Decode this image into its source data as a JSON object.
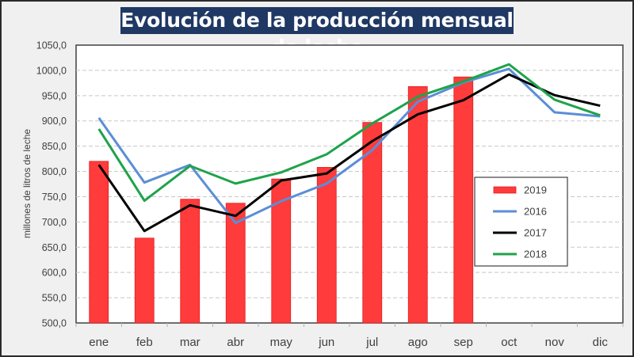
{
  "chart_data": {
    "type": "bar+line",
    "title": "Evolución de la producción mensual de leche",
    "xlabel": "",
    "ylabel": "millones de litros de leche",
    "ylim": [
      500,
      1050
    ],
    "ytick_step": 50,
    "ytick_labels": [
      "500,0",
      "550,0",
      "600,0",
      "650,0",
      "700,0",
      "750,0",
      "800,0",
      "850,0",
      "900,0",
      "950,0",
      "1000,0",
      "1050,0"
    ],
    "grid": "horizontal dashed",
    "legend_position": "right-middle",
    "categories": [
      "ene",
      "feb",
      "mar",
      "abr",
      "may",
      "jun",
      "jul",
      "ago",
      "sep",
      "oct",
      "nov",
      "dic"
    ],
    "series": [
      {
        "name": "2019",
        "type": "bar",
        "color": "#ff3b3b",
        "values": [
          820,
          668,
          745,
          737,
          785,
          808,
          897,
          968,
          987,
          null,
          null,
          null
        ]
      },
      {
        "name": "2016",
        "type": "line",
        "color": "#5b8ed6",
        "values": [
          906,
          778,
          813,
          698,
          741,
          776,
          842,
          938,
          976,
          1003,
          917,
          909
        ]
      },
      {
        "name": "2017",
        "type": "line",
        "color": "#000000",
        "values": [
          813,
          682,
          733,
          712,
          782,
          796,
          860,
          913,
          941,
          992,
          951,
          930
        ]
      },
      {
        "name": "2018",
        "type": "line",
        "color": "#1ea34a",
        "values": [
          884,
          742,
          811,
          776,
          798,
          834,
          895,
          948,
          978,
          1012,
          942,
          911
        ]
      }
    ]
  }
}
